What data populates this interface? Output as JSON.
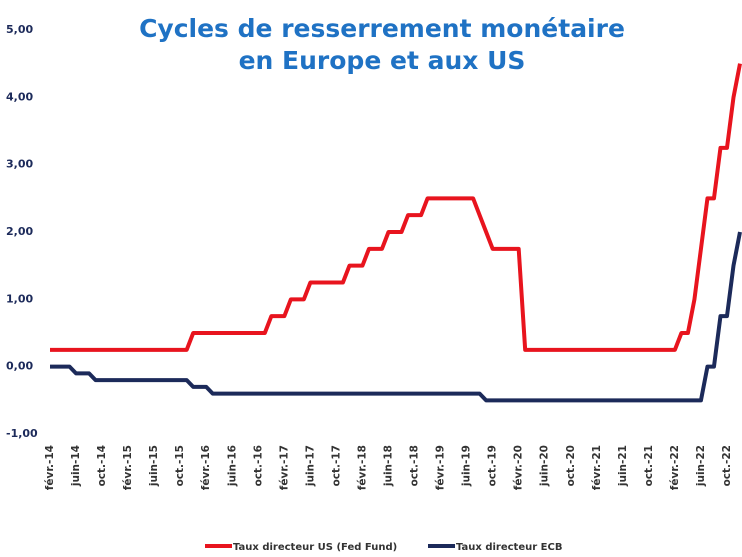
{
  "chart_data": {
    "type": "line",
    "title": "Cycles de resserrement monétaire",
    "subtitle": "en Europe et aux US",
    "categories": [
      "févr.-14",
      null,
      null,
      null,
      "juin-14",
      null,
      null,
      null,
      "oct.-14",
      null,
      null,
      null,
      "févr.-15",
      null,
      null,
      null,
      "juin-15",
      null,
      null,
      null,
      "oct.-15",
      null,
      null,
      null,
      "févr.-16",
      null,
      null,
      null,
      "juin-16",
      null,
      null,
      null,
      "oct.-16",
      null,
      null,
      null,
      "févr.-17",
      null,
      null,
      null,
      "juin-17",
      null,
      null,
      null,
      "oct.-17",
      null,
      null,
      null,
      "févr.-18",
      null,
      null,
      null,
      "juin-18",
      null,
      null,
      null,
      "oct.-18",
      null,
      null,
      null,
      "févr.-19",
      null,
      null,
      null,
      "juin-19",
      null,
      null,
      null,
      "oct.-19",
      null,
      null,
      null,
      "févr.-20",
      null,
      null,
      null,
      "juin-20",
      null,
      null,
      null,
      "oct.-20",
      null,
      null,
      null,
      "févr.-21",
      null,
      null,
      null,
      "juin-21",
      null,
      null,
      null,
      "oct.-21",
      null,
      null,
      null,
      "févr.-22",
      null,
      null,
      null,
      "juin-22",
      null,
      null,
      null,
      "oct.-22",
      null,
      null
    ],
    "series": [
      {
        "name": "Taux directeur US (Fed Fund)",
        "color": "#e8141e",
        "values": [
          0.25,
          0.25,
          0.25,
          0.25,
          0.25,
          0.25,
          0.25,
          0.25,
          0.25,
          0.25,
          0.25,
          0.25,
          0.25,
          0.25,
          0.25,
          0.25,
          0.25,
          0.25,
          0.25,
          0.25,
          0.25,
          0.25,
          0.5,
          0.5,
          0.5,
          0.5,
          0.5,
          0.5,
          0.5,
          0.5,
          0.5,
          0.5,
          0.5,
          0.5,
          0.75,
          0.75,
          0.75,
          1,
          1,
          1,
          1.25,
          1.25,
          1.25,
          1.25,
          1.25,
          1.25,
          1.5,
          1.5,
          1.5,
          1.75,
          1.75,
          1.75,
          2,
          2,
          2,
          2.25,
          2.25,
          2.25,
          2.5,
          2.5,
          2.5,
          2.5,
          2.5,
          2.5,
          2.5,
          2.5,
          2.25,
          2,
          1.75,
          1.75,
          1.75,
          1.75,
          1.75,
          0.25,
          0.25,
          0.25,
          0.25,
          0.25,
          0.25,
          0.25,
          0.25,
          0.25,
          0.25,
          0.25,
          0.25,
          0.25,
          0.25,
          0.25,
          0.25,
          0.25,
          0.25,
          0.25,
          0.25,
          0.25,
          0.25,
          0.25,
          0.25,
          0.5,
          0.5,
          1,
          1.75,
          2.5,
          2.5,
          3.25,
          3.25,
          4,
          4.5
        ]
      },
      {
        "name": "Taux directeur ECB",
        "color": "#1c2a5a",
        "values": [
          0,
          0,
          0,
          0,
          -0.1,
          -0.1,
          -0.1,
          -0.2,
          -0.2,
          -0.2,
          -0.2,
          -0.2,
          -0.2,
          -0.2,
          -0.2,
          -0.2,
          -0.2,
          -0.2,
          -0.2,
          -0.2,
          -0.2,
          -0.2,
          -0.3,
          -0.3,
          -0.3,
          -0.4,
          -0.4,
          -0.4,
          -0.4,
          -0.4,
          -0.4,
          -0.4,
          -0.4,
          -0.4,
          -0.4,
          -0.4,
          -0.4,
          -0.4,
          -0.4,
          -0.4,
          -0.4,
          -0.4,
          -0.4,
          -0.4,
          -0.4,
          -0.4,
          -0.4,
          -0.4,
          -0.4,
          -0.4,
          -0.4,
          -0.4,
          -0.4,
          -0.4,
          -0.4,
          -0.4,
          -0.4,
          -0.4,
          -0.4,
          -0.4,
          -0.4,
          -0.4,
          -0.4,
          -0.4,
          -0.4,
          -0.4,
          -0.4,
          -0.5,
          -0.5,
          -0.5,
          -0.5,
          -0.5,
          -0.5,
          -0.5,
          -0.5,
          -0.5,
          -0.5,
          -0.5,
          -0.5,
          -0.5,
          -0.5,
          -0.5,
          -0.5,
          -0.5,
          -0.5,
          -0.5,
          -0.5,
          -0.5,
          -0.5,
          -0.5,
          -0.5,
          -0.5,
          -0.5,
          -0.5,
          -0.5,
          -0.5,
          -0.5,
          -0.5,
          -0.5,
          -0.5,
          -0.5,
          0,
          0,
          0.75,
          0.75,
          1.5,
          2
        ]
      }
    ],
    "ylim": [
      -1,
      5
    ],
    "yticks": [
      {
        "value": -1,
        "label": "-1,00"
      },
      {
        "value": 0,
        "label": "0,00"
      },
      {
        "value": 1,
        "label": "1,00"
      },
      {
        "value": 2,
        "label": "2,00"
      },
      {
        "value": 3,
        "label": "3,00"
      },
      {
        "value": 4,
        "label": "4,00"
      },
      {
        "value": 5,
        "label": "5,00"
      }
    ],
    "grid": false
  }
}
